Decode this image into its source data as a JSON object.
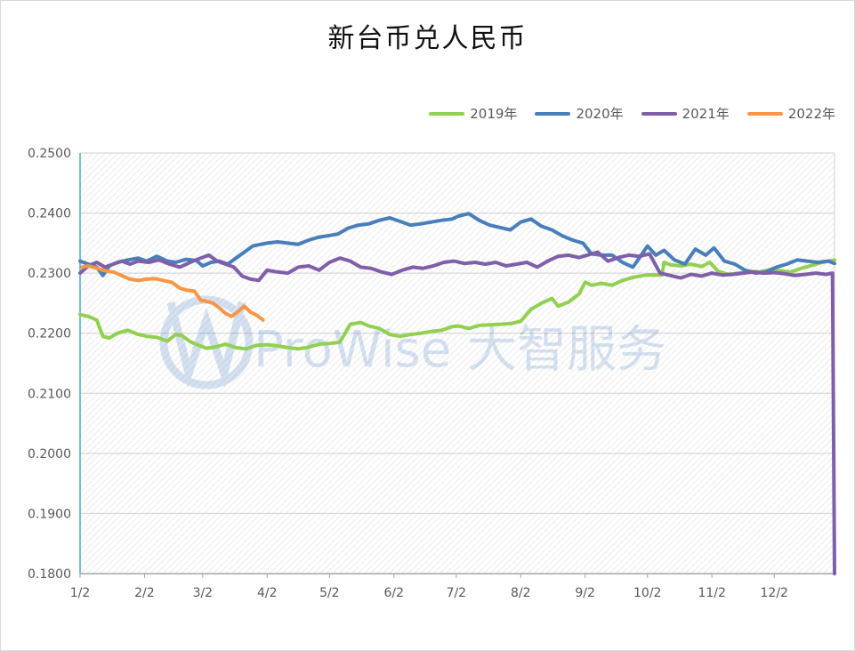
{
  "chart_data": {
    "type": "line",
    "title": "新台币兑人民币",
    "xlabel": "",
    "ylabel": "",
    "x_ticks": [
      "1/2",
      "2/2",
      "3/2",
      "4/2",
      "5/2",
      "6/2",
      "7/2",
      "8/2",
      "9/2",
      "10/2",
      "11/2",
      "12/2"
    ],
    "y_ticks": [
      "0.2500",
      "0.2400",
      "0.2300",
      "0.2200",
      "0.2100",
      "0.2000",
      "0.1900",
      "0.1800"
    ],
    "ylim": [
      0.18,
      0.25
    ],
    "xlim": [
      "1/2",
      "12/31"
    ],
    "grid": true,
    "legend_position": "top-right",
    "watermark": "ProWise 大智服务",
    "series": [
      {
        "name": "2019年",
        "color": "#92d050",
        "x": [
          "1/2",
          "1/6",
          "1/10",
          "1/13",
          "1/16",
          "1/20",
          "1/25",
          "1/30",
          "2/3",
          "2/8",
          "2/13",
          "2/17",
          "2/20",
          "2/24",
          "2/28",
          "3/4",
          "3/9",
          "3/13",
          "3/18",
          "3/23",
          "3/28",
          "4/2",
          "4/7",
          "4/12",
          "4/17",
          "4/22",
          "4/27",
          "5/2",
          "5/7",
          "5/12",
          "5/17",
          "5/21",
          "5/26",
          "5/31",
          "6/5",
          "6/10",
          "6/15",
          "6/20",
          "6/25",
          "6/30",
          "7/3",
          "7/8",
          "7/13",
          "7/18",
          "7/23",
          "7/28",
          "8/2",
          "8/7",
          "8/12",
          "8/17",
          "8/20",
          "8/25",
          "8/30",
          "9/2",
          "9/5",
          "9/10",
          "9/15",
          "9/20",
          "9/25",
          "9/30",
          "10/2",
          "10/7",
          "10/9",
          "10/10",
          "10/13",
          "10/18",
          "10/23",
          "10/28",
          "11/1",
          "11/5",
          "11/10",
          "11/15",
          "11/20",
          "11/25",
          "11/30",
          "12/5",
          "12/10",
          "12/15",
          "12/20",
          "12/25",
          "12/31"
        ],
        "values": [
          0.2231,
          0.2228,
          0.2222,
          0.2195,
          0.2192,
          0.22,
          0.2205,
          0.2198,
          0.2195,
          0.2193,
          0.2187,
          0.2198,
          0.2196,
          0.2186,
          0.218,
          0.2175,
          0.2178,
          0.2182,
          0.2176,
          0.2174,
          0.218,
          0.2181,
          0.2179,
          0.2176,
          0.2174,
          0.2177,
          0.2182,
          0.2183,
          0.2185,
          0.2215,
          0.2218,
          0.2212,
          0.2208,
          0.2198,
          0.2195,
          0.2198,
          0.22,
          0.2203,
          0.2205,
          0.2211,
          0.2212,
          0.2208,
          0.2213,
          0.2214,
          0.2215,
          0.2216,
          0.222,
          0.224,
          0.225,
          0.2258,
          0.2245,
          0.2252,
          0.2265,
          0.2285,
          0.228,
          0.2283,
          0.228,
          0.2288,
          0.2293,
          0.2296,
          0.2297,
          0.2297,
          0.2297,
          0.2318,
          0.2314,
          0.2312,
          0.2315,
          0.2311,
          0.2318,
          0.2303,
          0.2298,
          0.23,
          0.2303,
          0.2302,
          0.2306,
          0.2304,
          0.2302,
          0.2308,
          0.2313,
          0.2318,
          0.2322
        ]
      },
      {
        "name": "2020年",
        "color": "#4a7ebb",
        "x": [
          "1/2",
          "1/6",
          "1/10",
          "1/13",
          "1/16",
          "1/20",
          "1/25",
          "1/30",
          "2/3",
          "2/8",
          "2/13",
          "2/17",
          "2/22",
          "2/27",
          "3/2",
          "3/6",
          "3/10",
          "3/14",
          "3/18",
          "3/22",
          "3/26",
          "3/30",
          "4/2",
          "4/7",
          "4/12",
          "4/17",
          "4/22",
          "4/27",
          "5/1",
          "5/6",
          "5/11",
          "5/16",
          "5/21",
          "5/26",
          "5/31",
          "6/5",
          "6/10",
          "6/15",
          "6/20",
          "6/25",
          "6/30",
          "7/3",
          "7/8",
          "7/13",
          "7/18",
          "7/23",
          "7/28",
          "8/2",
          "8/7",
          "8/12",
          "8/17",
          "8/22",
          "8/27",
          "9/1",
          "9/5",
          "9/10",
          "9/15",
          "9/20",
          "9/25",
          "10/2",
          "10/6",
          "10/10",
          "10/15",
          "10/20",
          "10/25",
          "10/30",
          "11/3",
          "11/8",
          "11/13",
          "11/18",
          "11/23",
          "11/28",
          "12/3",
          "12/8",
          "12/13",
          "12/18",
          "12/23",
          "12/28",
          "12/31"
        ],
        "values": [
          0.232,
          0.2315,
          0.231,
          0.2296,
          0.2312,
          0.2318,
          0.2322,
          0.2325,
          0.232,
          0.2328,
          0.232,
          0.2318,
          0.2323,
          0.2321,
          0.2312,
          0.2318,
          0.232,
          0.2315,
          0.2325,
          0.2335,
          0.2345,
          0.2348,
          0.235,
          0.2352,
          0.235,
          0.2348,
          0.2355,
          0.236,
          0.2362,
          0.2365,
          0.2375,
          0.238,
          0.2382,
          0.2388,
          0.2392,
          0.2386,
          0.238,
          0.2382,
          0.2385,
          0.2388,
          0.239,
          0.2395,
          0.2399,
          0.2388,
          0.238,
          0.2376,
          0.2372,
          0.2385,
          0.239,
          0.2378,
          0.2372,
          0.2362,
          0.2355,
          0.235,
          0.2332,
          0.233,
          0.233,
          0.2318,
          0.231,
          0.2345,
          0.233,
          0.2338,
          0.2322,
          0.2315,
          0.234,
          0.233,
          0.2342,
          0.232,
          0.2315,
          0.2305,
          0.23,
          0.2302,
          0.231,
          0.2315,
          0.2322,
          0.232,
          0.2318,
          0.232,
          0.2316
        ]
      },
      {
        "name": "2021年",
        "color": "#7f5fa9",
        "x": [
          "1/2",
          "1/6",
          "1/10",
          "1/14",
          "1/18",
          "1/22",
          "1/26",
          "1/30",
          "2/4",
          "2/9",
          "2/14",
          "2/19",
          "2/24",
          "3/1",
          "3/5",
          "3/9",
          "3/13",
          "3/17",
          "3/21",
          "3/25",
          "3/29",
          "4/2",
          "4/7",
          "4/12",
          "4/17",
          "4/22",
          "4/27",
          "5/2",
          "5/7",
          "5/12",
          "5/17",
          "5/22",
          "5/27",
          "6/1",
          "6/6",
          "6/11",
          "6/16",
          "6/21",
          "6/26",
          "7/1",
          "7/6",
          "7/11",
          "7/16",
          "7/21",
          "7/26",
          "7/31",
          "8/5",
          "8/10",
          "8/15",
          "8/20",
          "8/25",
          "8/30",
          "9/3",
          "9/8",
          "9/13",
          "9/18",
          "9/23",
          "9/28",
          "10/3",
          "10/8",
          "10/13",
          "10/18",
          "10/23",
          "10/28",
          "11/2",
          "11/7",
          "11/12",
          "11/17",
          "11/22",
          "11/27",
          "12/2",
          "12/7",
          "12/12",
          "12/17",
          "12/22",
          "12/27",
          "12/30",
          "12/31"
        ],
        "values": [
          0.23,
          0.2312,
          0.2318,
          0.231,
          0.2315,
          0.232,
          0.2315,
          0.232,
          0.2318,
          0.2322,
          0.2315,
          0.231,
          0.2318,
          0.2325,
          0.233,
          0.232,
          0.2315,
          0.231,
          0.2295,
          0.229,
          0.2288,
          0.2305,
          0.2302,
          0.23,
          0.231,
          0.2312,
          0.2305,
          0.2318,
          0.2325,
          0.232,
          0.231,
          0.2308,
          0.2302,
          0.2298,
          0.2305,
          0.231,
          0.2308,
          0.2312,
          0.2318,
          0.232,
          0.2316,
          0.2318,
          0.2315,
          0.2318,
          0.2312,
          0.2315,
          0.2318,
          0.231,
          0.232,
          0.2328,
          0.233,
          0.2326,
          0.233,
          0.2335,
          0.232,
          0.2326,
          0.233,
          0.2328,
          0.2332,
          0.23,
          0.2296,
          0.2292,
          0.2298,
          0.2295,
          0.23,
          0.2297,
          0.2298,
          0.23,
          0.2302,
          0.23,
          0.2301,
          0.2299,
          0.2296,
          0.2298,
          0.23,
          0.2298,
          0.23,
          0.18
        ]
      },
      {
        "name": "2022年",
        "color": "#f79646",
        "x": [
          "1/3",
          "1/6",
          "1/10",
          "1/14",
          "1/18",
          "1/22",
          "1/26",
          "1/30",
          "2/3",
          "2/7",
          "2/11",
          "2/15",
          "2/19",
          "2/22",
          "2/26",
          "3/1",
          "3/4",
          "3/7",
          "3/10",
          "3/13",
          "3/16",
          "3/19",
          "3/22",
          "3/25",
          "3/28",
          "3/31"
        ],
        "values": [
          0.231,
          0.2312,
          0.2308,
          0.2304,
          0.2302,
          0.2296,
          0.229,
          0.2288,
          0.229,
          0.2291,
          0.2288,
          0.2285,
          0.2275,
          0.2272,
          0.227,
          0.2255,
          0.2253,
          0.225,
          0.2242,
          0.2233,
          0.2228,
          0.2236,
          0.2245,
          0.2235,
          0.223,
          0.2222
        ]
      }
    ]
  }
}
